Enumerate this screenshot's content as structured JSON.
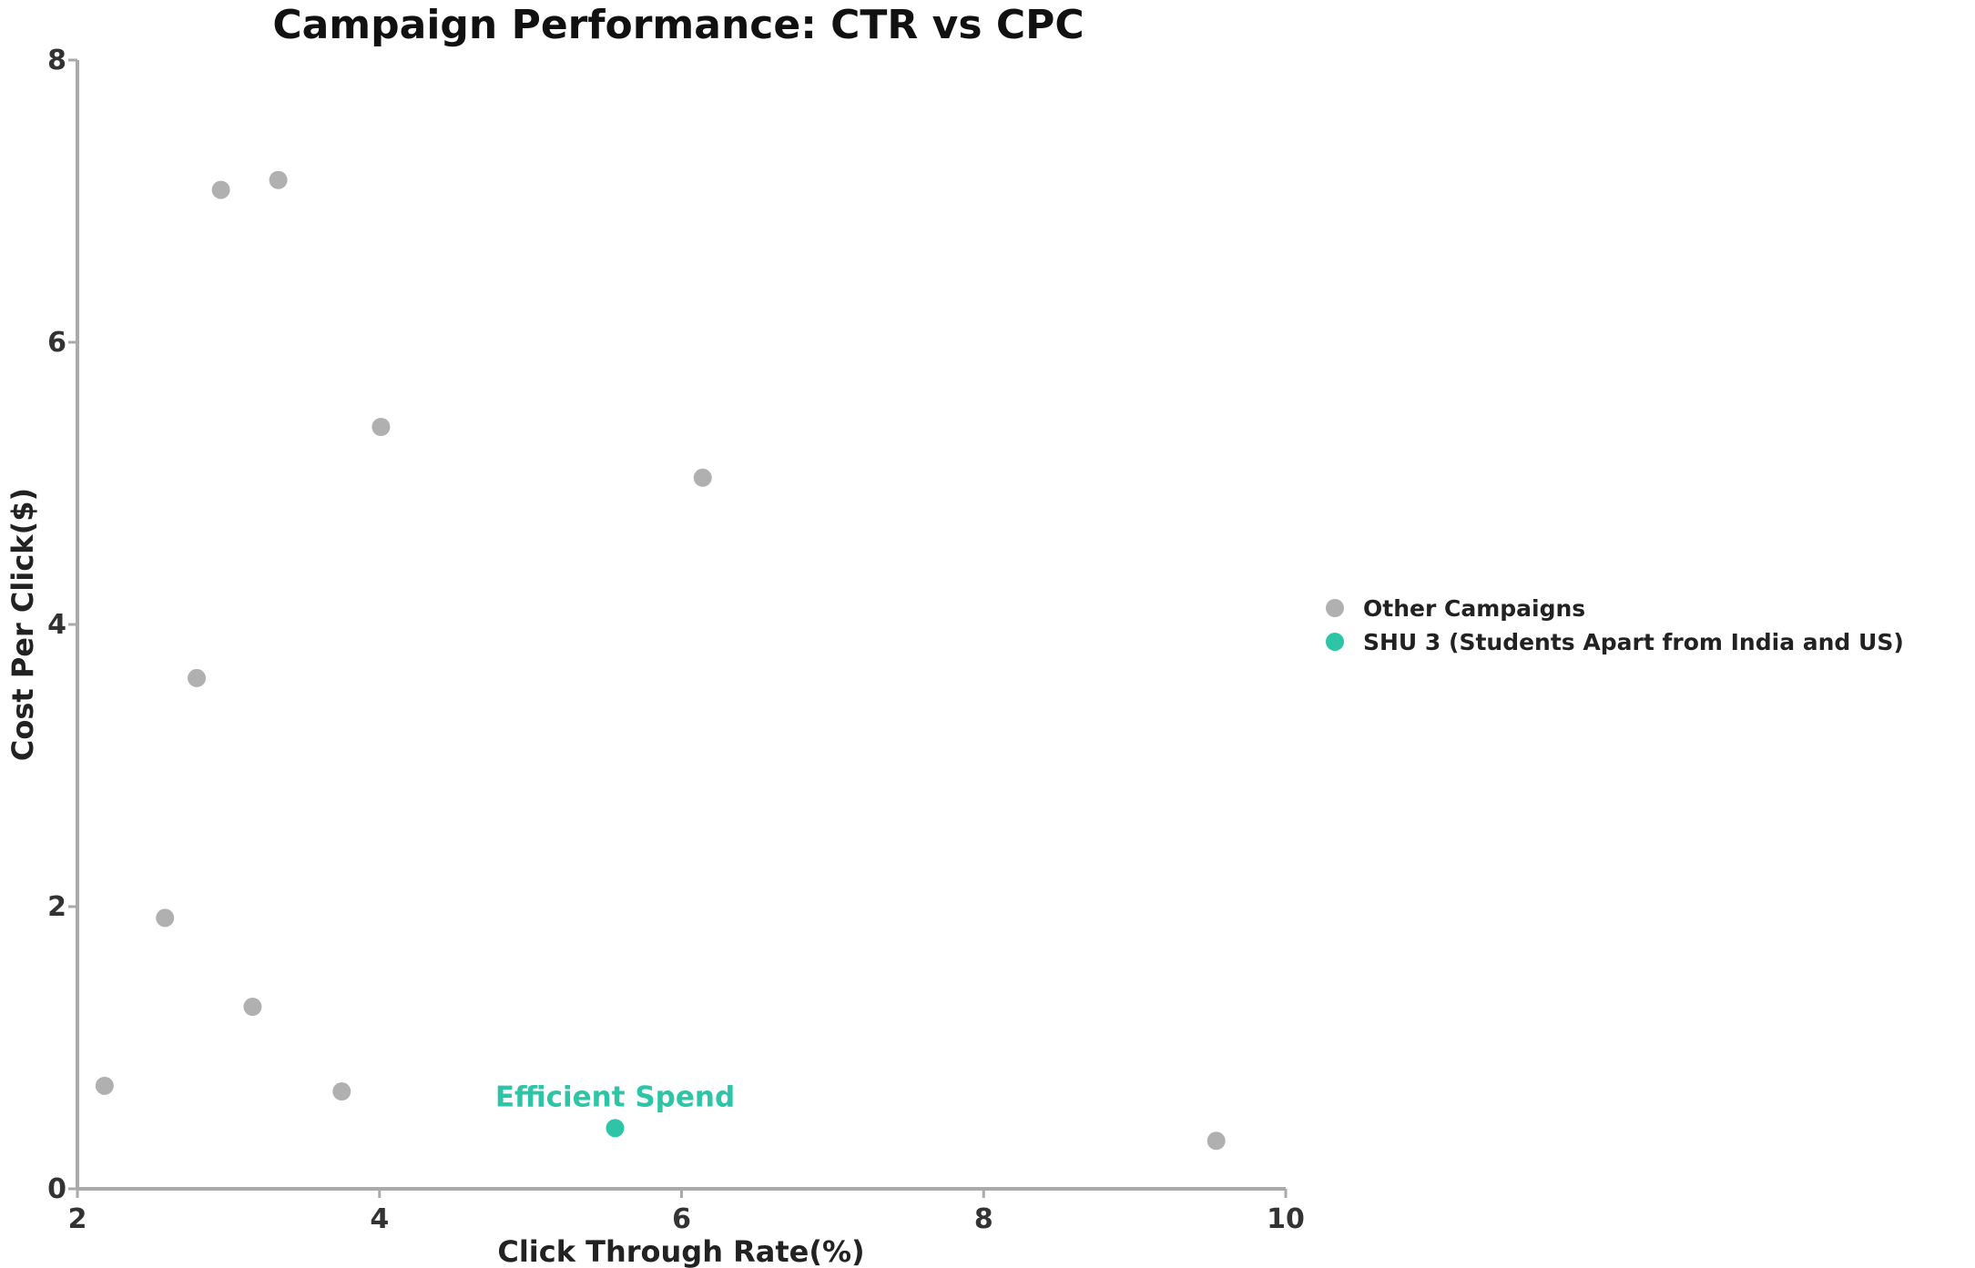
{
  "chart_data": {
    "type": "scatter",
    "title": "Campaign Performance: CTR vs CPC",
    "xlabel": "Click Through Rate(%)",
    "ylabel": "Cost Per Click($)",
    "xlim": [
      2,
      10
    ],
    "ylim": [
      0,
      8
    ],
    "xticks": [
      2,
      4,
      6,
      8,
      10
    ],
    "yticks": [
      0,
      2,
      4,
      6,
      8
    ],
    "grid": false,
    "legend_position": "right",
    "series": [
      {
        "name": "Other Campaigns",
        "color": "#b0b0b0",
        "points": [
          {
            "x": 2.95,
            "y": 7.08
          },
          {
            "x": 3.33,
            "y": 7.15
          },
          {
            "x": 4.01,
            "y": 5.4
          },
          {
            "x": 6.14,
            "y": 5.04
          },
          {
            "x": 2.79,
            "y": 3.62
          },
          {
            "x": 2.58,
            "y": 1.92
          },
          {
            "x": 3.16,
            "y": 1.29
          },
          {
            "x": 2.18,
            "y": 0.73
          },
          {
            "x": 3.75,
            "y": 0.69
          },
          {
            "x": 9.54,
            "y": 0.34
          }
        ]
      },
      {
        "name": "SHU 3 (Students Apart from India and US)",
        "color": "#2ec4a6",
        "points": [
          {
            "x": 5.56,
            "y": 0.43
          }
        ]
      }
    ],
    "annotations": [
      {
        "text": "Efficient Spend",
        "x": 5.56,
        "y": 0.43,
        "color": "#2ec4a6"
      }
    ]
  }
}
